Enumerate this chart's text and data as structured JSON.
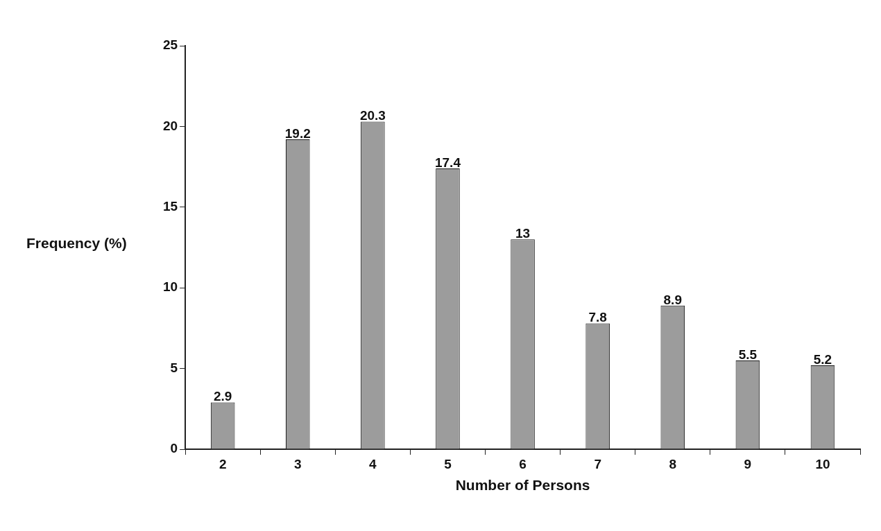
{
  "chart_data": {
    "type": "bar",
    "xlabel": "Number of Persons",
    "ylabel": "Frequency (%)",
    "categories": [
      "2",
      "3",
      "4",
      "5",
      "6",
      "7",
      "8",
      "9",
      "10"
    ],
    "values": [
      2.9,
      19.2,
      20.3,
      17.4,
      13,
      7.8,
      8.9,
      5.5,
      5.2
    ],
    "value_labels": [
      "2.9",
      "19.2",
      "20.3",
      "17.4",
      "13",
      "7.8",
      "8.9",
      "5.5",
      "5.2"
    ],
    "color": "#9c9c9c",
    "ylim": [
      0,
      25
    ],
    "yticks": [
      0,
      5,
      10,
      15,
      20,
      25
    ],
    "grid": false,
    "legend": false
  }
}
